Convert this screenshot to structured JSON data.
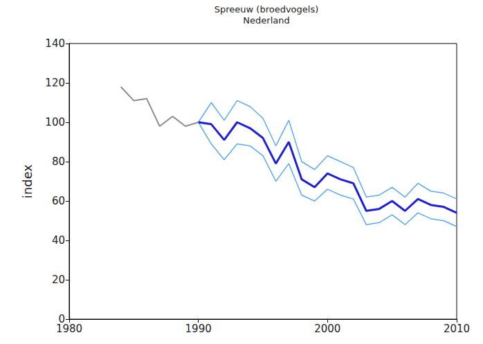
{
  "chart_data": {
    "type": "line",
    "title": "Spreeuw (broedvogels)",
    "subtitle": "Nederland",
    "y_label": "index",
    "x": [
      1984,
      1985,
      1986,
      1987,
      1988,
      1989,
      1990,
      1991,
      1992,
      1993,
      1994,
      1995,
      1996,
      1997,
      1998,
      1999,
      2000,
      2001,
      2002,
      2003,
      2004,
      2005,
      2006,
      2007,
      2008,
      2009,
      2010
    ],
    "series": [
      {
        "color": "#8c8c8c",
        "values": [
          118,
          111,
          112,
          98,
          103,
          98,
          100,
          null,
          null,
          null,
          null,
          null,
          null,
          null,
          null,
          null,
          null,
          null,
          null,
          null,
          null,
          null,
          null,
          null,
          null,
          null,
          null
        ]
      },
      {
        "color": "#5aaaf0",
        "line_style": "thin",
        "values": [
          null,
          null,
          null,
          null,
          null,
          null,
          100,
          110,
          101,
          111,
          108,
          102,
          88,
          101,
          80,
          76,
          83,
          80,
          77,
          62,
          63,
          67,
          62,
          69,
          65,
          64,
          61
        ]
      },
      {
        "color": "#5aaaf0",
        "line_style": "thin",
        "values": [
          null,
          null,
          null,
          null,
          null,
          null,
          100,
          89,
          81,
          89,
          88,
          83,
          70,
          79,
          63,
          60,
          66,
          63,
          61,
          48,
          49,
          53,
          48,
          54,
          51,
          50,
          47
        ]
      },
      {
        "color": "#1f1fd6",
        "line_style": "thick",
        "values": [
          null,
          null,
          null,
          null,
          null,
          null,
          100,
          99,
          91,
          100,
          97,
          92,
          79,
          90,
          71,
          67,
          74,
          71,
          69,
          55,
          56,
          60,
          55,
          61,
          58,
          57,
          54
        ]
      }
    ],
    "xlim": [
      1980,
      2010
    ],
    "xticks": [
      1980,
      1990,
      2000,
      2010
    ],
    "ylim": [
      0,
      140
    ],
    "yticks": [
      0,
      20,
      40,
      60,
      80,
      100,
      120,
      140
    ],
    "grid": false
  }
}
